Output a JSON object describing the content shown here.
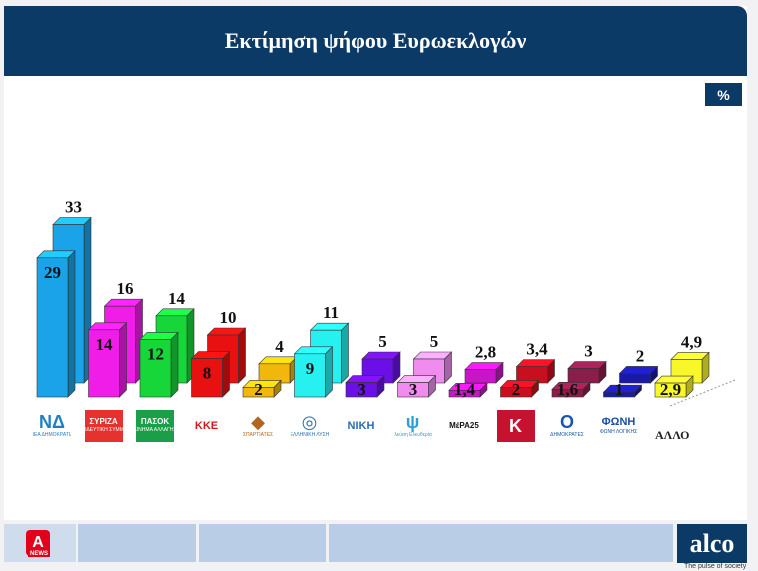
{
  "header": {
    "title": "Εκτίμηση ψήφου Ευρωεκλογών"
  },
  "unit_badge": "%",
  "other_label": "ΑΛΛΟ",
  "parties": [
    {
      "name": "ΝΔ",
      "mark": "ΝΔ",
      "sub": "ΝΕΑ ΔΗΜΟΚΡΑΤΙΑ",
      "color": "#1aa3e8",
      "bg": "#ffffff",
      "fg": "#1f7fc4"
    },
    {
      "name": "ΣΥΡΙΖΑ",
      "mark": "ΣΥΡΙΖΑ",
      "sub": "ΠΡΟΟΔΕΥΤΙΚΗ ΣΥΜΜΑΧΙΑ",
      "color": "#f01de8",
      "bg": "#e6322f",
      "fg": "#ffffff"
    },
    {
      "name": "ΠΑΣΟΚ",
      "mark": "ΠΑΣΟΚ",
      "sub": "ΚΙΝΗΜΑ ΑΛΛΑΓΗΣ",
      "color": "#17d63a",
      "bg": "#1a9e48",
      "fg": "#ffffff"
    },
    {
      "name": "ΚΚΕ",
      "mark": "ΚΚΕ",
      "sub": "",
      "color": "#e81010",
      "bg": "#ffffff",
      "fg": "#d11b1b"
    },
    {
      "name": "ΣΠΑΡΤΙΑΤΕΣ",
      "mark": "◆",
      "sub": "ΣΠΑΡΤΙΑΤΕΣ",
      "color": "#f2b70d",
      "bg": "#ffffff",
      "fg": "#b5651d"
    },
    {
      "name": "ΕΛΛΗΝΙΚΗ ΛΥΣΗ",
      "mark": "◎",
      "sub": "ΕΛΛΗΝΙΚΗ ΛΥΣΗ",
      "color": "#26f0f0",
      "bg": "#ffffff",
      "fg": "#2d6fa8"
    },
    {
      "name": "ΝΙΚΗ",
      "mark": "ΝΙΚΗ",
      "sub": "",
      "color": "#6b0fe8",
      "bg": "#ffffff",
      "fg": "#2a6db5"
    },
    {
      "name": "Πλεύση Ελευθερίας",
      "mark": "ψ",
      "sub": "Πλεύση Ελευθερίας",
      "color": "#f08cf0",
      "bg": "#ffffff",
      "fg": "#2aa0d8"
    },
    {
      "name": "ΜέΡΑ25",
      "mark": "ΜέΡΑ25",
      "sub": "",
      "color": "#c815c8",
      "bg": "#ffffff",
      "fg": "#111111"
    },
    {
      "name": "Κ",
      "mark": "Κ",
      "sub": "",
      "color": "#c80f1f",
      "bg": "#c4122f",
      "fg": "#ffffff"
    },
    {
      "name": "ΔΗΜΟΚΡΑΤΕΣ",
      "mark": "Ο",
      "sub": "ΔΗΜΟΚΡΑΤΕΣ",
      "color": "#8a1d4a",
      "bg": "#ffffff",
      "fg": "#1a56b0"
    },
    {
      "name": "ΦΩΝΗ ΛΟΓΙΚΗΣ",
      "mark": "ΦΩΝΗ",
      "sub": "ΦΩΝΗ ΛΟΓΙΚΗΣ",
      "color": "#1a1aa8",
      "bg": "#ffffff",
      "fg": "#1a4fa0"
    },
    {
      "name": "ΑΛΛΟ",
      "mark": "",
      "sub": "",
      "color": "#f7f72a",
      "bg": "#ffffff",
      "fg": "#222222"
    }
  ],
  "chart_data": {
    "type": "bar",
    "categories": [
      "ΝΔ",
      "ΣΥΡΙΖΑ",
      "ΠΑΣΟΚ",
      "ΚΚΕ",
      "ΣΠΑΡΤΙΑΤΕΣ",
      "ΕΛΛΗΝΙΚΗ ΛΥΣΗ",
      "ΝΙΚΗ",
      "Πλεύση Ελευθερίας",
      "ΜέΡΑ25",
      "Κ",
      "ΔΗΜΟΚΡΑΤΕΣ",
      "ΦΩΝΗ ΛΟΓΙΚΗΣ",
      "ΑΛΛΟ"
    ],
    "series": [
      {
        "values": [
          29,
          14,
          12,
          8,
          2,
          9,
          3,
          3,
          1.4,
          2,
          1.6,
          1,
          2.9
        ],
        "labels": [
          "29",
          "14",
          "12",
          "8",
          "2",
          "9",
          "3",
          "3",
          "1,4",
          "2",
          "1,6",
          "1",
          "2,9"
        ]
      },
      {
        "values": [
          33,
          16,
          14,
          10,
          4,
          11,
          5,
          5,
          2.8,
          3.4,
          3,
          2,
          4.9
        ],
        "labels": [
          "33",
          "16",
          "14",
          "10",
          "4",
          "11",
          "5",
          "5",
          "2,8",
          "3,4",
          "3",
          "2",
          "4,9"
        ]
      }
    ],
    "title": "Εκτίμηση ψήφου Ευρωεκλογών",
    "ylabel": "%",
    "grid": false,
    "legend": "none"
  },
  "footer": {
    "news_mark": "A",
    "news_sub": "NEWS",
    "brand": "alco",
    "tagline": "The pulse of society"
  }
}
